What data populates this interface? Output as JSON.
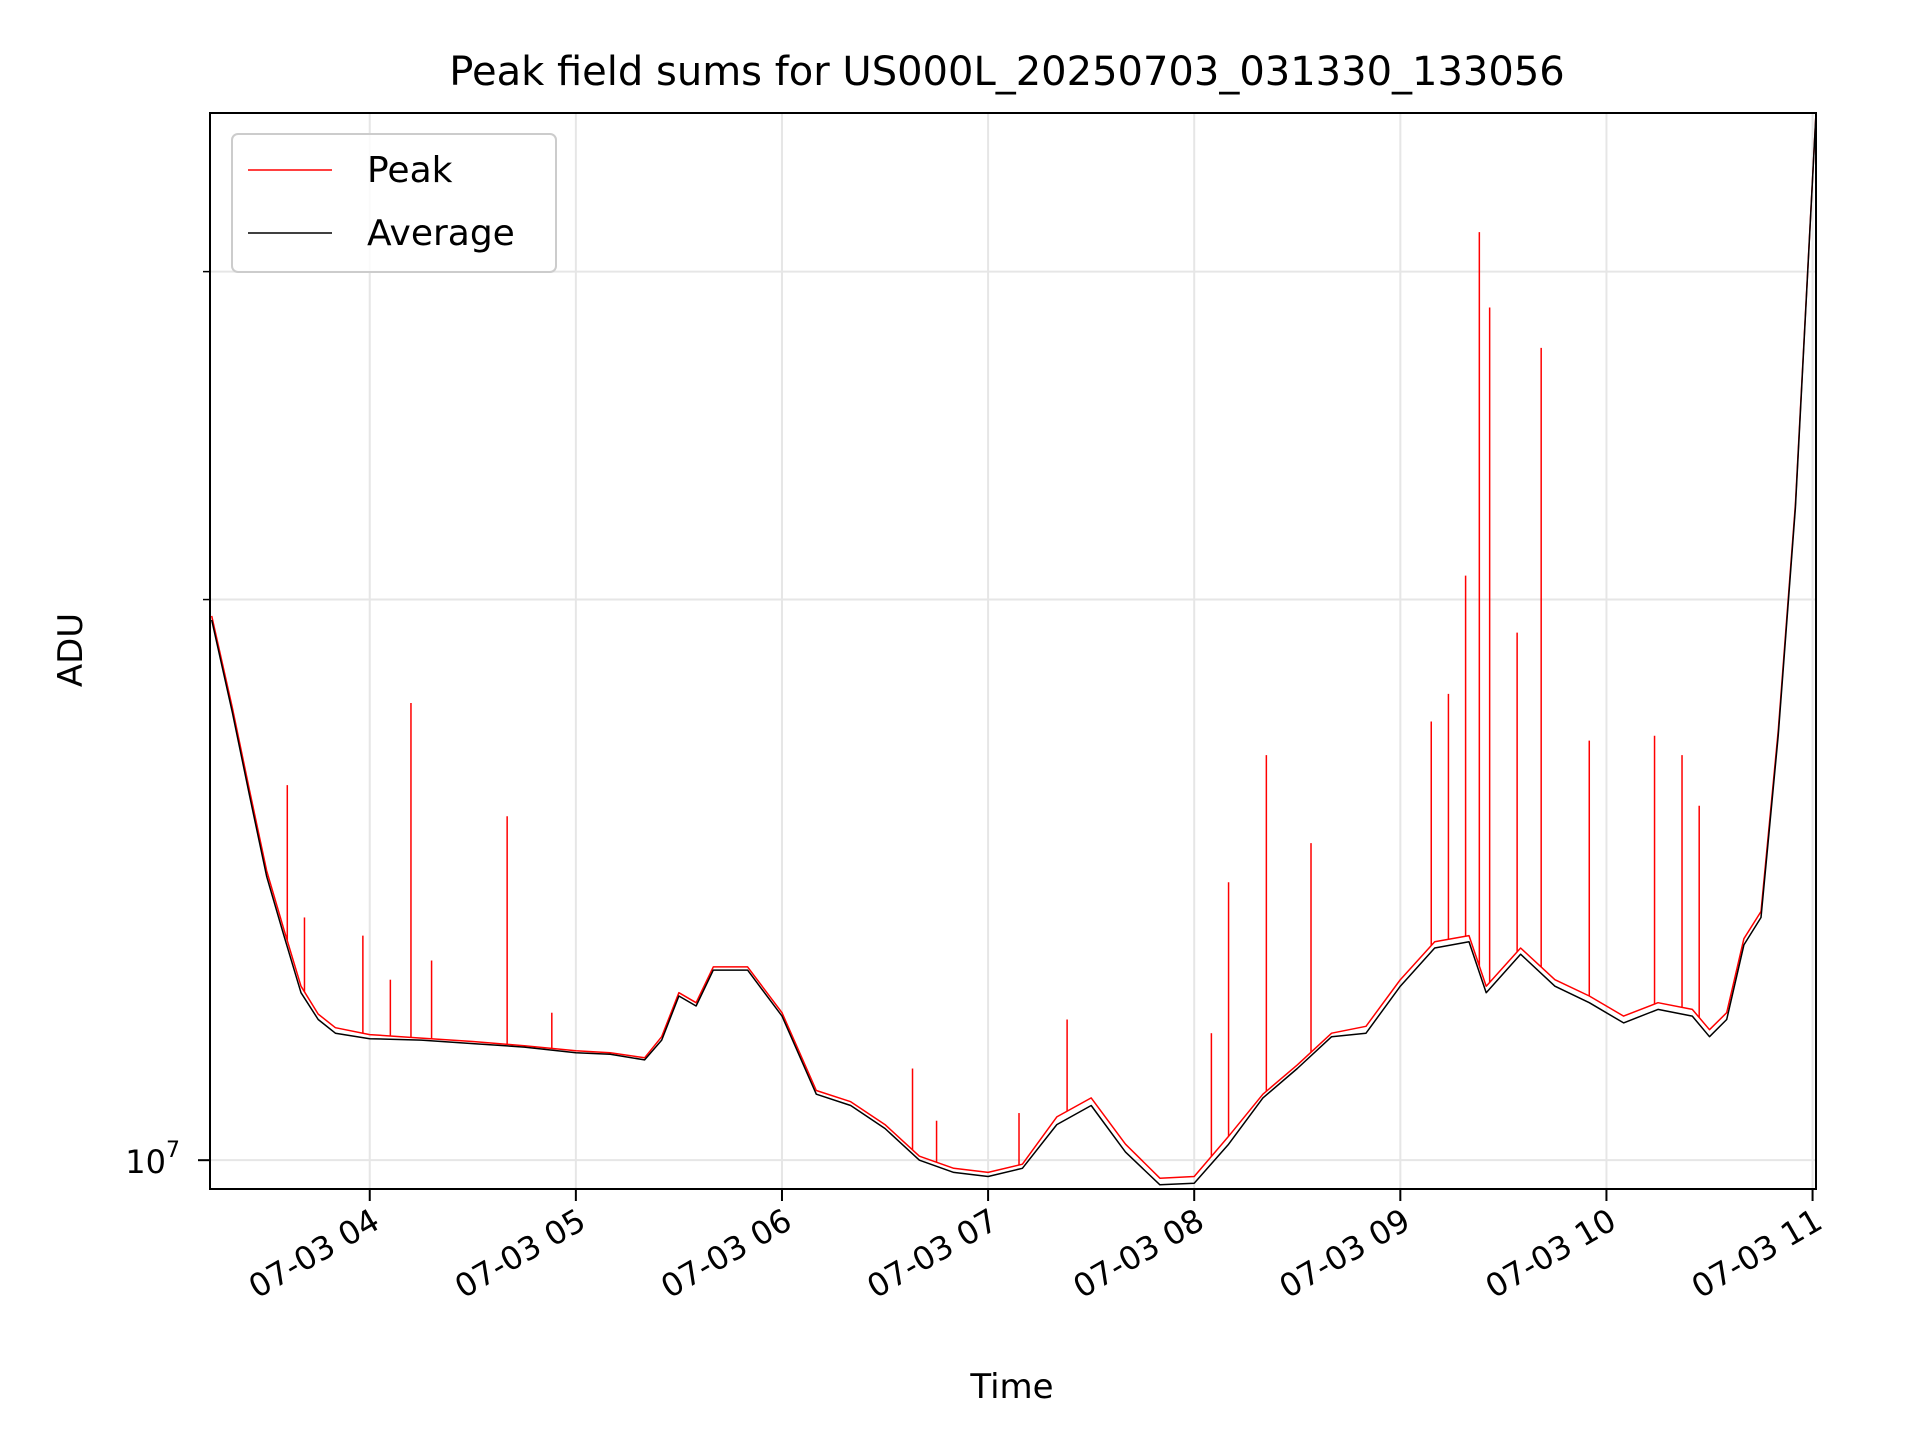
{
  "chart_data": {
    "type": "line",
    "title": "Peak field sums for US000L_20250703_031330_133056",
    "xlabel": "Time",
    "ylabel": "ADU",
    "y_scale": "log",
    "xlim": [
      "2025-07-03 03:13:30",
      "2025-07-03 11:01:00"
    ],
    "ylim": [
      9650000,
      36500000
    ],
    "x_ticks": [
      {
        "time": "2025-07-03 04:00",
        "label": "07-03 04"
      },
      {
        "time": "2025-07-03 05:00",
        "label": "07-03 05"
      },
      {
        "time": "2025-07-03 06:00",
        "label": "07-03 06"
      },
      {
        "time": "2025-07-03 07:00",
        "label": "07-03 07"
      },
      {
        "time": "2025-07-03 08:00",
        "label": "07-03 08"
      },
      {
        "time": "2025-07-03 09:00",
        "label": "07-03 09"
      },
      {
        "time": "2025-07-03 10:00",
        "label": "07-03 10"
      },
      {
        "time": "2025-07-03 11:00",
        "label": "07-03 11"
      }
    ],
    "y_major_ticks": [
      {
        "value": 10000000,
        "label": "10",
        "exponent": "7"
      }
    ],
    "y_minor_ticks": [
      20000000,
      30000000
    ],
    "grid": true,
    "legend_position": "top-left",
    "series": [
      {
        "name": "Peak",
        "color": "#ff0000",
        "points": [
          [
            "2025-07-03 03:14:00",
            19600000
          ],
          [
            "2025-07-03 03:20:00",
            17500000
          ],
          [
            "2025-07-03 03:25:00",
            15800000
          ],
          [
            "2025-07-03 03:30:00",
            14300000
          ],
          [
            "2025-07-03 03:35:00",
            13300000
          ],
          [
            "2025-07-03 03:40:00",
            12400000
          ],
          [
            "2025-07-03 03:45:00",
            11980000
          ],
          [
            "2025-07-03 03:50:00",
            11780000
          ],
          [
            "2025-07-03 04:00:00",
            11680000
          ],
          [
            "2025-07-03 04:15:00",
            11630000
          ],
          [
            "2025-07-03 04:30:00",
            11580000
          ],
          [
            "2025-07-03 04:45:00",
            11520000
          ],
          [
            "2025-07-03 05:00:00",
            11450000
          ],
          [
            "2025-07-03 05:10:00",
            11420000
          ],
          [
            "2025-07-03 05:20:00",
            11350000
          ],
          [
            "2025-07-03 05:25:00",
            11650000
          ],
          [
            "2025-07-03 05:30:00",
            12300000
          ],
          [
            "2025-07-03 05:35:00",
            12150000
          ],
          [
            "2025-07-03 05:40:00",
            12700000
          ],
          [
            "2025-07-03 05:50:00",
            12700000
          ],
          [
            "2025-07-03 06:00:00",
            12000000
          ],
          [
            "2025-07-03 06:10:00",
            10900000
          ],
          [
            "2025-07-03 06:20:00",
            10750000
          ],
          [
            "2025-07-03 06:30:00",
            10450000
          ],
          [
            "2025-07-03 06:40:00",
            10050000
          ],
          [
            "2025-07-03 06:50:00",
            9900000
          ],
          [
            "2025-07-03 07:00:00",
            9850000
          ],
          [
            "2025-07-03 07:10:00",
            9950000
          ],
          [
            "2025-07-03 07:20:00",
            10550000
          ],
          [
            "2025-07-03 07:30:00",
            10800000
          ],
          [
            "2025-07-03 07:40:00",
            10200000
          ],
          [
            "2025-07-03 07:50:00",
            9780000
          ],
          [
            "2025-07-03 08:00:00",
            9800000
          ],
          [
            "2025-07-03 08:10:00",
            10300000
          ],
          [
            "2025-07-03 08:20:00",
            10850000
          ],
          [
            "2025-07-03 08:30:00",
            11250000
          ],
          [
            "2025-07-03 08:40:00",
            11700000
          ],
          [
            "2025-07-03 08:50:00",
            11800000
          ],
          [
            "2025-07-03 09:00:00",
            12500000
          ],
          [
            "2025-07-03 09:10:00",
            13100000
          ],
          [
            "2025-07-03 09:20:00",
            13200000
          ],
          [
            "2025-07-03 09:25:00",
            12400000
          ],
          [
            "2025-07-03 09:35:00",
            13000000
          ],
          [
            "2025-07-03 09:45:00",
            12500000
          ],
          [
            "2025-07-03 09:55:00",
            12250000
          ],
          [
            "2025-07-03 10:05:00",
            11950000
          ],
          [
            "2025-07-03 10:15:00",
            12150000
          ],
          [
            "2025-07-03 10:25:00",
            12050000
          ],
          [
            "2025-07-03 10:30:00",
            11750000
          ],
          [
            "2025-07-03 10:35:00",
            12000000
          ],
          [
            "2025-07-03 10:40:00",
            13150000
          ],
          [
            "2025-07-03 10:45:00",
            13600000
          ],
          [
            "2025-07-03 10:50:00",
            17000000
          ],
          [
            "2025-07-03 10:55:00",
            22500000
          ],
          [
            "2025-07-03 11:01:00",
            36500000
          ]
        ],
        "spikes": [
          [
            "2025-07-03 03:36:00",
            15900000
          ],
          [
            "2025-07-03 03:41:00",
            13500000
          ],
          [
            "2025-07-03 03:58:00",
            13200000
          ],
          [
            "2025-07-03 04:06:00",
            12500000
          ],
          [
            "2025-07-03 04:12:00",
            17600000
          ],
          [
            "2025-07-03 04:18:00",
            12800000
          ],
          [
            "2025-07-03 04:40:00",
            15300000
          ],
          [
            "2025-07-03 04:53:00",
            12000000
          ],
          [
            "2025-07-03 06:38:00",
            11200000
          ],
          [
            "2025-07-03 06:45:00",
            10500000
          ],
          [
            "2025-07-03 07:09:00",
            10600000
          ],
          [
            "2025-07-03 07:23:00",
            11900000
          ],
          [
            "2025-07-03 08:05:00",
            11700000
          ],
          [
            "2025-07-03 08:10:00",
            14100000
          ],
          [
            "2025-07-03 08:21:00",
            16500000
          ],
          [
            "2025-07-03 08:34:00",
            14800000
          ],
          [
            "2025-07-03 09:09:00",
            17200000
          ],
          [
            "2025-07-03 09:14:00",
            17800000
          ],
          [
            "2025-07-03 09:19:00",
            20600000
          ],
          [
            "2025-07-03 09:23:00",
            31500000
          ],
          [
            "2025-07-03 09:26:00",
            28700000
          ],
          [
            "2025-07-03 09:34:00",
            19200000
          ],
          [
            "2025-07-03 09:41:00",
            27300000
          ],
          [
            "2025-07-03 09:55:00",
            16800000
          ],
          [
            "2025-07-03 10:14:00",
            16900000
          ],
          [
            "2025-07-03 10:22:00",
            16500000
          ],
          [
            "2025-07-03 10:27:00",
            15500000
          ]
        ]
      },
      {
        "name": "Average",
        "color": "#000000",
        "points": [
          [
            "2025-07-03 03:14:00",
            19500000
          ],
          [
            "2025-07-03 03:20:00",
            17400000
          ],
          [
            "2025-07-03 03:25:00",
            15700000
          ],
          [
            "2025-07-03 03:30:00",
            14200000
          ],
          [
            "2025-07-03 03:35:00",
            13200000
          ],
          [
            "2025-07-03 03:40:00",
            12300000
          ],
          [
            "2025-07-03 03:45:00",
            11900000
          ],
          [
            "2025-07-03 03:50:00",
            11700000
          ],
          [
            "2025-07-03 04:00:00",
            11620000
          ],
          [
            "2025-07-03 04:15:00",
            11600000
          ],
          [
            "2025-07-03 04:30:00",
            11550000
          ],
          [
            "2025-07-03 04:45:00",
            11500000
          ],
          [
            "2025-07-03 05:00:00",
            11420000
          ],
          [
            "2025-07-03 05:10:00",
            11400000
          ],
          [
            "2025-07-03 05:20:00",
            11320000
          ],
          [
            "2025-07-03 05:25:00",
            11600000
          ],
          [
            "2025-07-03 05:30:00",
            12250000
          ],
          [
            "2025-07-03 05:35:00",
            12100000
          ],
          [
            "2025-07-03 05:40:00",
            12650000
          ],
          [
            "2025-07-03 05:50:00",
            12650000
          ],
          [
            "2025-07-03 06:00:00",
            11950000
          ],
          [
            "2025-07-03 06:10:00",
            10850000
          ],
          [
            "2025-07-03 06:20:00",
            10700000
          ],
          [
            "2025-07-03 06:30:00",
            10400000
          ],
          [
            "2025-07-03 06:40:00",
            10000000
          ],
          [
            "2025-07-03 06:50:00",
            9850000
          ],
          [
            "2025-07-03 07:00:00",
            9800000
          ],
          [
            "2025-07-03 07:10:00",
            9900000
          ],
          [
            "2025-07-03 07:20:00",
            10450000
          ],
          [
            "2025-07-03 07:30:00",
            10700000
          ],
          [
            "2025-07-03 07:40:00",
            10100000
          ],
          [
            "2025-07-03 07:50:00",
            9700000
          ],
          [
            "2025-07-03 08:00:00",
            9720000
          ],
          [
            "2025-07-03 08:10:00",
            10200000
          ],
          [
            "2025-07-03 08:20:00",
            10800000
          ],
          [
            "2025-07-03 08:30:00",
            11200000
          ],
          [
            "2025-07-03 08:40:00",
            11650000
          ],
          [
            "2025-07-03 08:50:00",
            11700000
          ],
          [
            "2025-07-03 09:00:00",
            12400000
          ],
          [
            "2025-07-03 09:10:00",
            13000000
          ],
          [
            "2025-07-03 09:20:00",
            13100000
          ],
          [
            "2025-07-03 09:25:00",
            12300000
          ],
          [
            "2025-07-03 09:35:00",
            12900000
          ],
          [
            "2025-07-03 09:45:00",
            12400000
          ],
          [
            "2025-07-03 09:55:00",
            12150000
          ],
          [
            "2025-07-03 10:05:00",
            11850000
          ],
          [
            "2025-07-03 10:15:00",
            12050000
          ],
          [
            "2025-07-03 10:25:00",
            11950000
          ],
          [
            "2025-07-03 10:30:00",
            11650000
          ],
          [
            "2025-07-03 10:35:00",
            11900000
          ],
          [
            "2025-07-03 10:40:00",
            13050000
          ],
          [
            "2025-07-03 10:45:00",
            13500000
          ],
          [
            "2025-07-03 10:50:00",
            16900000
          ],
          [
            "2025-07-03 10:55:00",
            22400000
          ],
          [
            "2025-07-03 11:01:00",
            36500000
          ]
        ]
      }
    ]
  }
}
